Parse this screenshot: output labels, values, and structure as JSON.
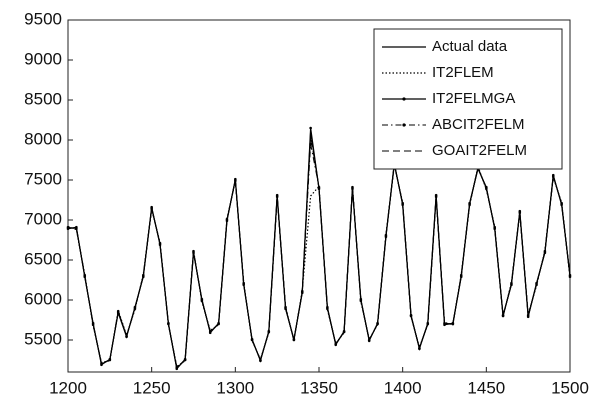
{
  "chart_data": {
    "type": "line",
    "x": [
      1200,
      1205,
      1210,
      1215,
      1220,
      1225,
      1230,
      1235,
      1240,
      1245,
      1250,
      1255,
      1260,
      1265,
      1270,
      1275,
      1280,
      1285,
      1290,
      1295,
      1300,
      1305,
      1310,
      1315,
      1320,
      1325,
      1330,
      1335,
      1340,
      1345,
      1350,
      1355,
      1360,
      1365,
      1370,
      1375,
      1380,
      1385,
      1390,
      1395,
      1400,
      1405,
      1410,
      1415,
      1420,
      1425,
      1430,
      1435,
      1440,
      1445,
      1450,
      1455,
      1460,
      1465,
      1470,
      1475,
      1480,
      1485,
      1490,
      1495,
      1500
    ],
    "series": [
      {
        "name": "Actual data",
        "color": "#000000",
        "values": [
          6900,
          6900,
          6300,
          5700,
          5200,
          5250,
          5850,
          5550,
          5900,
          6300,
          7150,
          6700,
          5700,
          5150,
          5250,
          6600,
          6000,
          5600,
          5700,
          7000,
          7500,
          6200,
          5500,
          5250,
          5600,
          7300,
          5900,
          5500,
          6100,
          8100,
          7400,
          5900,
          5450,
          5600,
          7400,
          6000,
          5500,
          5700,
          6800,
          7700,
          7200,
          5800,
          5400,
          5700,
          7300,
          5700,
          5700,
          6300,
          7200,
          7650,
          7400,
          6900,
          5800,
          6200,
          7100,
          5800,
          6200,
          6600,
          7550,
          7200,
          6300
        ]
      },
      {
        "name": "IT2FLEM",
        "color": "#000000",
        "values": [
          6920,
          6880,
          6320,
          5680,
          5220,
          5240,
          5870,
          5560,
          5880,
          6320,
          7130,
          6720,
          5690,
          5170,
          5240,
          6620,
          5980,
          5620,
          5690,
          7020,
          7480,
          6220,
          5490,
          5260,
          5590,
          7280,
          5920,
          5490,
          6120,
          7300,
          7420,
          5880,
          5460,
          5590,
          7420,
          5980,
          5510,
          5690,
          6820,
          7680,
          7220,
          5790,
          5410,
          5690,
          7280,
          5720,
          5690,
          6320,
          7180,
          7670,
          7380,
          6920,
          5790,
          6220,
          7080,
          5820,
          6180,
          6620,
          7530,
          7220,
          6280
        ]
      },
      {
        "name": "IT2FELMGA",
        "color": "#000000",
        "values": [
          6890,
          6910,
          6290,
          5710,
          5190,
          5260,
          5840,
          5540,
          5910,
          6290,
          7160,
          6690,
          5710,
          5140,
          5260,
          6590,
          6010,
          5590,
          5710,
          6990,
          7510,
          6190,
          5510,
          5240,
          5610,
          7310,
          5890,
          5510,
          6090,
          8150,
          7390,
          5910,
          5440,
          5610,
          7390,
          6010,
          5490,
          5710,
          6790,
          7710,
          7190,
          5810,
          5390,
          5710,
          7310,
          5690,
          5710,
          6290,
          7210,
          7640,
          7410,
          6890,
          5810,
          6190,
          7110,
          5790,
          6210,
          6590,
          7560,
          7190,
          6310
        ]
      },
      {
        "name": "ABCIT2FELM",
        "color": "#000000",
        "values": [
          6910,
          6890,
          6310,
          5690,
          5210,
          5250,
          5860,
          5550,
          5890,
          6310,
          7140,
          6710,
          5700,
          5160,
          5250,
          6610,
          5990,
          5610,
          5700,
          7010,
          7490,
          6210,
          5500,
          5250,
          5600,
          7290,
          5910,
          5500,
          6110,
          7950,
          7410,
          5890,
          5450,
          5600,
          7410,
          5990,
          5500,
          5700,
          6810,
          7690,
          7210,
          5800,
          5400,
          5700,
          7290,
          5710,
          5700,
          6310,
          7190,
          7660,
          7390,
          6910,
          5800,
          6210,
          7090,
          5810,
          6190,
          6610,
          7540,
          7210,
          6290
        ]
      },
      {
        "name": "GOAIT2FELM",
        "color": "#000000",
        "values": [
          6900,
          6900,
          6300,
          5700,
          5200,
          5250,
          5850,
          5550,
          5900,
          6300,
          7150,
          6700,
          5700,
          5150,
          5250,
          6600,
          6000,
          5600,
          5700,
          7000,
          7500,
          6200,
          5500,
          5250,
          5600,
          7300,
          5900,
          5500,
          6100,
          8050,
          7400,
          5900,
          5450,
          5600,
          7400,
          6000,
          5500,
          5700,
          6800,
          7700,
          7200,
          5800,
          5400,
          5700,
          7300,
          5700,
          5700,
          6300,
          7200,
          7650,
          7400,
          6900,
          5800,
          6200,
          7100,
          5800,
          6200,
          6600,
          7550,
          7200,
          6300
        ]
      }
    ],
    "xlim": [
      1200,
      1500
    ],
    "xticks": [
      1200,
      1250,
      1300,
      1350,
      1400,
      1450,
      1500
    ],
    "ylim": [
      5100,
      9500
    ],
    "yticks": [
      5500,
      6000,
      6500,
      7000,
      7500,
      8000,
      8500,
      9000,
      9500
    ],
    "legend": "upper right"
  }
}
